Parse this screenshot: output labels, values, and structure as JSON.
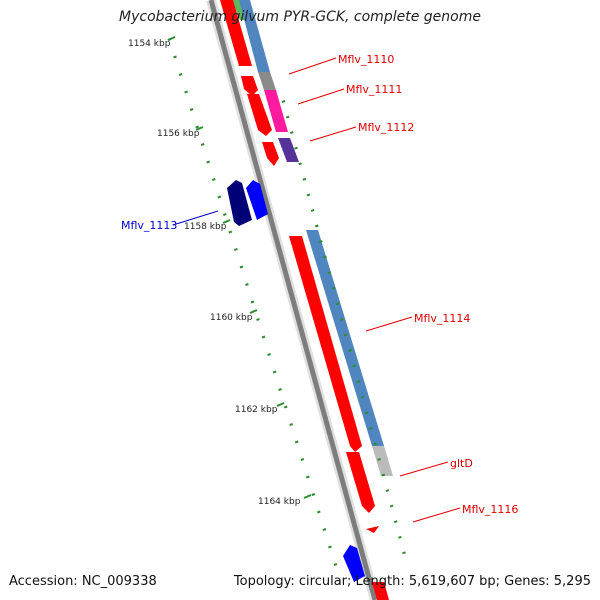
{
  "title": "Mycobacterium gilvum PYR-GCK, complete genome",
  "footer": {
    "accession": "Accession: NC_009338",
    "summary": "Topology: circular; Length: 5,619,607 bp; Genes: 5,295"
  },
  "colors": {
    "backbone": "#7d7d7d",
    "tick": "#2e8b2e",
    "forward_label": "#dd0000",
    "reverse_label": "#0000cc",
    "cds_red": "#ff0000",
    "cds_blue": "#0000ff",
    "cds_navy": "#000077",
    "track_steelblue": "#4f86bf",
    "track_gray": "#8a8a8a",
    "track_magenta": "#ff1aa0",
    "track_purple": "#553399",
    "track_lightgray": "#bbbbbb"
  },
  "ticks": [
    {
      "label": "1154 kbp"
    },
    {
      "label": "1156 kbp"
    },
    {
      "label": "1158 kbp"
    },
    {
      "label": "1160 kbp"
    },
    {
      "label": "1162 kbp"
    },
    {
      "label": "1164 kbp"
    }
  ],
  "genes": [
    {
      "label": "Mflv_1110",
      "strand": "forward"
    },
    {
      "label": "Mflv_1111",
      "strand": "forward"
    },
    {
      "label": "Mflv_1112",
      "strand": "forward"
    },
    {
      "label": "Mflv_1113",
      "strand": "reverse"
    },
    {
      "label": "Mflv_1114",
      "strand": "forward"
    },
    {
      "label": "gltD",
      "strand": "forward"
    },
    {
      "label": "Mflv_1116",
      "strand": "forward"
    }
  ]
}
